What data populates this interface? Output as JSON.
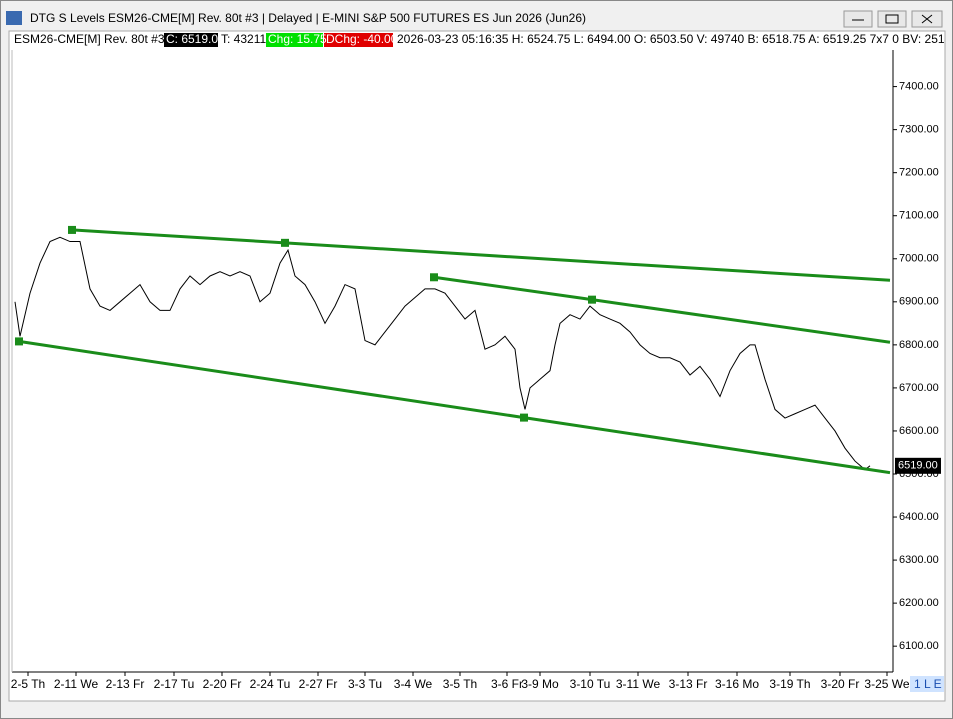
{
  "chart_data": {
    "type": "line",
    "title": "DTG S Levels ESM26-CME[M]  Rev. 80t #3 | Delayed | E-MINI S&P 500 FUTURES ES Jun 2026 (Jun26)",
    "info": [
      "ESM26-CME[M]  Rev. 80t #3",
      "C: 6519.00",
      "T: 43211",
      "Chg: 15.75",
      "DChg: -40.00",
      "2026-03-23 05:16:35 H: 6524.75 L: 6494.00 O: 6503.50 V: 49740 B: 6518.75 A: 6519.25 7x7 0 BV: 251"
    ],
    "status": "1 L E",
    "xlim": [
      0,
      881
    ],
    "xticks": [
      {
        "value": 16,
        "label": "2-5 Th"
      },
      {
        "value": 64,
        "label": "2-11 We"
      },
      {
        "value": 113,
        "label": "2-13 Fr"
      },
      {
        "value": 162,
        "label": "2-17 Tu"
      },
      {
        "value": 210,
        "label": "2-20 Fr"
      },
      {
        "value": 258,
        "label": "2-24 Tu"
      },
      {
        "value": 306,
        "label": "2-27 Fr"
      },
      {
        "value": 353,
        "label": "3-3 Tu"
      },
      {
        "value": 401,
        "label": "3-4 We"
      },
      {
        "value": 448,
        "label": "3-5 Th"
      },
      {
        "value": 495,
        "label": "3-6 Fr"
      },
      {
        "value": 528,
        "label": "3-9 Mo"
      },
      {
        "value": 578,
        "label": "3-10 Tu"
      },
      {
        "value": 626,
        "label": "3-11 We"
      },
      {
        "value": 676,
        "label": "3-13 Fr"
      },
      {
        "value": 725,
        "label": "3-16 Mo"
      },
      {
        "value": 778,
        "label": "3-19 Th"
      },
      {
        "value": 828,
        "label": "3-20 Fr"
      },
      {
        "value": 875,
        "label": "3-25 We"
      }
    ],
    "ylim": [
      6040,
      7485
    ],
    "yticks": [
      {
        "value": 6100,
        "label": "6100.00"
      },
      {
        "value": 6200,
        "label": "6200.00"
      },
      {
        "value": 6300,
        "label": "6300.00"
      },
      {
        "value": 6400,
        "label": "6400.00"
      },
      {
        "value": 6500,
        "label": "6500.00"
      },
      {
        "value": 6600,
        "label": "6600.00"
      },
      {
        "value": 6700,
        "label": "6700.00"
      },
      {
        "value": 6800,
        "label": "6800.00"
      },
      {
        "value": 6900,
        "label": "6900.00"
      },
      {
        "value": 7000,
        "label": "7000.00"
      },
      {
        "value": 7100,
        "label": "7100.00"
      },
      {
        "value": 7200,
        "label": "7200.00"
      },
      {
        "value": 7300,
        "label": "7300.00"
      },
      {
        "value": 7400,
        "label": "7400.00"
      }
    ],
    "last": {
      "value": 6519,
      "label": "6519.00"
    },
    "series": [
      {
        "color": "#000000",
        "width": 1,
        "x": [
          3,
          8,
          18,
          28,
          38,
          48,
          58,
          68,
          78,
          88,
          98,
          108,
          118,
          128,
          138,
          148,
          158,
          168,
          178,
          188,
          198,
          208,
          218,
          228,
          238,
          248,
          258,
          268,
          276,
          283,
          293,
          303,
          313,
          323,
          333,
          343,
          353,
          363,
          373,
          383,
          393,
          403,
          413,
          423,
          433,
          443,
          453,
          463,
          473,
          483,
          493,
          503,
          508,
          513,
          518,
          528,
          538,
          543,
          548,
          558,
          568,
          578,
          588,
          598,
          608,
          618,
          628,
          638,
          648,
          658,
          668,
          678,
          688,
          698,
          708,
          718,
          728,
          738,
          743,
          753,
          763,
          773,
          783,
          793,
          803,
          813,
          823,
          833,
          843,
          853,
          858
        ],
        "values": [
          6900,
          6820,
          6920,
          6990,
          7040,
          7050,
          7040,
          7040,
          6930,
          6890,
          6880,
          6900,
          6920,
          6940,
          6900,
          6880,
          6880,
          6930,
          6960,
          6940,
          6960,
          6970,
          6960,
          6970,
          6960,
          6900,
          6920,
          6990,
          7020,
          6960,
          6940,
          6900,
          6850,
          6890,
          6940,
          6930,
          6810,
          6800,
          6830,
          6860,
          6890,
          6910,
          6930,
          6930,
          6920,
          6890,
          6860,
          6880,
          6790,
          6800,
          6820,
          6790,
          6700,
          6650,
          6700,
          6720,
          6740,
          6800,
          6850,
          6870,
          6860,
          6890,
          6870,
          6860,
          6850,
          6830,
          6800,
          6780,
          6770,
          6770,
          6760,
          6730,
          6750,
          6720,
          6680,
          6740,
          6780,
          6800,
          6800,
          6720,
          6650,
          6630,
          6640,
          6650,
          6660,
          6630,
          6600,
          6560,
          6530,
          6510,
          6519
        ]
      },
      {
        "color": "#1a8c1a",
        "width": 3,
        "x": [
          60,
          273,
          878
        ],
        "values": [
          7067,
          7037,
          6950
        ]
      },
      {
        "color": "#1a8c1a",
        "width": 3,
        "x": [
          422,
          580,
          878
        ],
        "values": [
          6957,
          6905,
          6806
        ]
      },
      {
        "color": "#1a8c1a",
        "width": 3,
        "x": [
          7,
          512,
          878
        ],
        "values": [
          6808,
          6631,
          6503
        ]
      }
    ]
  }
}
